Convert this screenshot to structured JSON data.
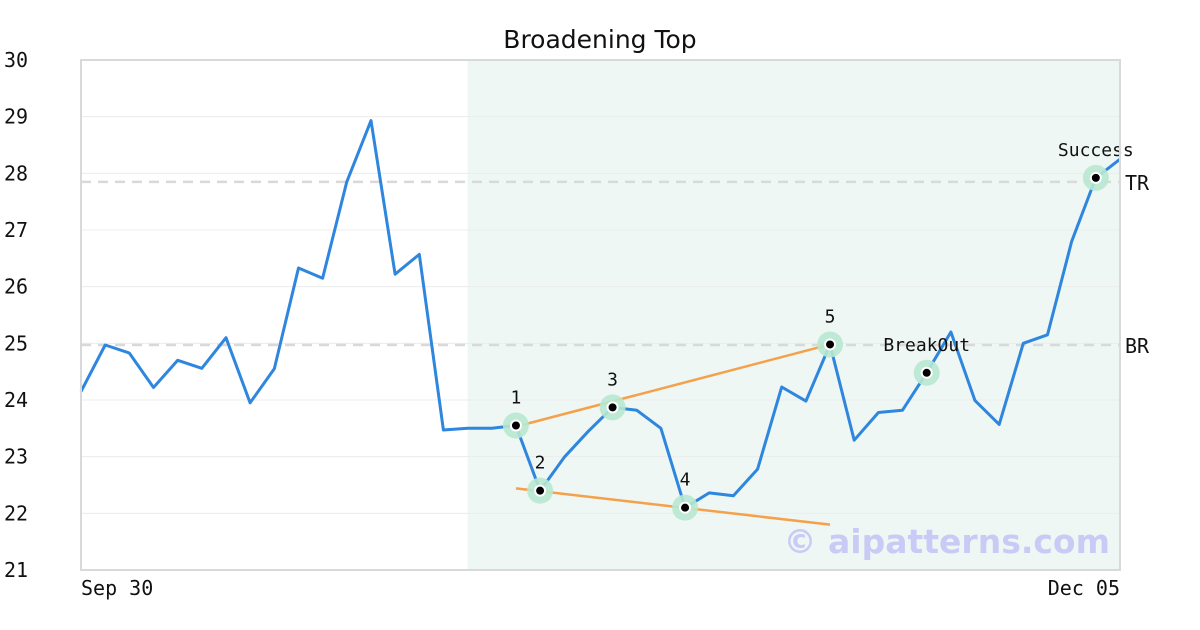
{
  "chart_data": {
    "type": "line",
    "title": "Broadening Top",
    "xlabel": "",
    "ylabel": "",
    "ylim": [
      21,
      30
    ],
    "yticks": [
      21,
      22,
      23,
      24,
      25,
      26,
      27,
      28,
      29,
      30
    ],
    "x_tick_labels": [
      "Sep 30",
      "Dec 05"
    ],
    "grid": "horizontal",
    "series": [
      {
        "color": "#2e86de",
        "values": [
          24.15,
          24.97,
          24.83,
          24.22,
          24.7,
          24.56,
          25.1,
          23.95,
          24.55,
          26.33,
          26.15,
          27.85,
          28.93,
          26.22,
          26.57,
          23.47,
          23.5,
          23.5,
          23.55,
          22.4,
          22.99,
          23.45,
          23.87,
          23.82,
          23.5,
          22.1,
          22.36,
          22.31,
          22.78,
          24.23,
          23.98,
          24.98,
          23.29,
          23.78,
          23.82,
          24.48,
          25.2,
          23.99,
          23.57,
          25.0,
          25.15,
          26.8,
          27.92,
          28.25
        ]
      }
    ],
    "highlight_region": {
      "start_index": 16,
      "end_index": 43,
      "color": "#eef7f3"
    },
    "reference_lines": [
      {
        "label": "TR",
        "value": 27.85
      },
      {
        "label": "BR",
        "value": 24.97
      }
    ],
    "trend_lines": [
      {
        "color": "#f5a04a",
        "from": {
          "index": 18,
          "value": 23.53
        },
        "to": {
          "index": 31,
          "value": 24.98
        }
      },
      {
        "color": "#f5a04a",
        "from": {
          "index": 18,
          "value": 22.44
        },
        "to": {
          "index": 31,
          "value": 21.8
        }
      }
    ],
    "points": [
      {
        "label": "1",
        "index": 18,
        "value": 23.55,
        "label_pos": "above"
      },
      {
        "label": "2",
        "index": 19,
        "value": 22.4,
        "label_pos": "above"
      },
      {
        "label": "3",
        "index": 22,
        "value": 23.87,
        "label_pos": "above"
      },
      {
        "label": "4",
        "index": 25,
        "value": 22.1,
        "label_pos": "above"
      },
      {
        "label": "5",
        "index": 31,
        "value": 24.98,
        "label_pos": "above"
      },
      {
        "label": "BreakOut",
        "index": 35,
        "value": 24.48,
        "label_pos": "above"
      },
      {
        "label": "Success",
        "index": 42,
        "value": 27.92,
        "label_pos": "above"
      }
    ],
    "watermark": "© aipatterns.com",
    "colors": {
      "line": "#2e86de",
      "marker_halo": "#b8e8d2",
      "trend": "#f5a04a",
      "ref": "#d9d9d9",
      "frame": "#d9d9d9"
    }
  }
}
